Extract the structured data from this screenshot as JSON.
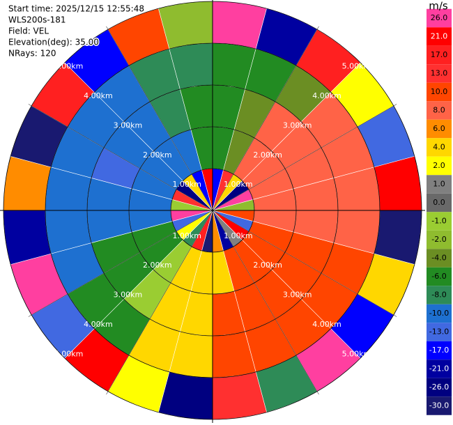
{
  "chart_data": {
    "type": "ppi",
    "info": [
      "Start time: 2025/12/15 12:55:48",
      "WLS200s-181",
      "Field: VEL",
      "Elevation(deg): 35.00",
      "NRays: 120"
    ],
    "rlim": [
      0,
      5
    ],
    "range_rings": [
      {
        "value": 1,
        "label": "1.00km"
      },
      {
        "value": 2,
        "label": "2.00km"
      },
      {
        "value": 3,
        "label": "3.00km"
      },
      {
        "value": 4,
        "label": "4.00km"
      },
      {
        "value": 5,
        "label": "5.00km"
      }
    ],
    "colorbar": {
      "unit": "m/s",
      "ticks": [
        {
          "value": 26,
          "label": "26.0"
        },
        {
          "value": 21,
          "label": "21.0"
        },
        {
          "value": 17,
          "label": "17.0"
        },
        {
          "value": 13,
          "label": "13.0"
        },
        {
          "value": 10,
          "label": "10.0"
        },
        {
          "value": 8,
          "label": "8.0"
        },
        {
          "value": 6,
          "label": "6.0"
        },
        {
          "value": 4,
          "label": "4.0"
        },
        {
          "value": 2,
          "label": "2.0"
        },
        {
          "value": 1,
          "label": "1.0"
        },
        {
          "value": 0,
          "label": "0.0"
        },
        {
          "value": -1,
          "label": "-1.0"
        },
        {
          "value": -2,
          "label": "-2.0"
        },
        {
          "value": -4,
          "label": "-4.0"
        },
        {
          "value": -6,
          "label": "-6.0"
        },
        {
          "value": -8,
          "label": "-8.0"
        },
        {
          "value": -10,
          "label": "-10.0"
        },
        {
          "value": -13,
          "label": "-13.0"
        },
        {
          "value": -17,
          "label": "-17.0"
        },
        {
          "value": -21,
          "label": "-21.0"
        },
        {
          "value": -26,
          "label": "-26.0"
        },
        {
          "value": -30,
          "label": "-30.0"
        }
      ],
      "colors": [
        "#ff3fa0",
        "#ff0000",
        "#ff2020",
        "#ff3030",
        "#ff4500",
        "#ff6347",
        "#ff8c00",
        "#ffd700",
        "#ffff00",
        "#808080",
        "#696969",
        "#9acd32",
        "#8fbc2f",
        "#6b8e23",
        "#228b22",
        "#2e8b57",
        "#1e70d0",
        "#4169e1",
        "#0000ff",
        "#0000a0",
        "#000080",
        "#191970"
      ]
    },
    "values": [
      [
        -17,
        -6,
        -6,
        -6,
        26
      ],
      [
        13,
        -4,
        -4,
        -6,
        -21
      ],
      [
        4,
        8,
        8,
        -4,
        17
      ],
      [
        -26,
        8,
        8,
        8,
        2
      ],
      [
        26,
        8,
        8,
        8,
        -13
      ],
      [
        -2,
        8,
        8,
        8,
        21
      ],
      [
        10,
        8,
        8,
        8,
        -30
      ],
      [
        -13,
        10,
        10,
        10,
        4
      ],
      [
        21,
        10,
        10,
        10,
        -17
      ],
      [
        1,
        10,
        10,
        10,
        26
      ],
      [
        -21,
        10,
        10,
        10,
        -8
      ],
      [
        6,
        4,
        10,
        10,
        13
      ],
      [
        -30,
        4,
        4,
        4,
        -26
      ],
      [
        17,
        4,
        4,
        4,
        2
      ],
      [
        -8,
        -1,
        -1,
        -6,
        21
      ],
      [
        2,
        -6,
        -6,
        -6,
        -13
      ],
      [
        -13,
        -6,
        -6,
        -10,
        26
      ],
      [
        26,
        -10,
        -10,
        -10,
        -21
      ],
      [
        -1,
        -10,
        -10,
        -10,
        6
      ],
      [
        13,
        -10,
        -13,
        -10,
        -30
      ],
      [
        -26,
        -10,
        -10,
        -10,
        17
      ],
      [
        4,
        -10,
        -10,
        -10,
        -17
      ],
      [
        -17,
        -10,
        -8,
        -8,
        10
      ],
      [
        21,
        -6,
        -6,
        -8,
        -2
      ]
    ]
  }
}
